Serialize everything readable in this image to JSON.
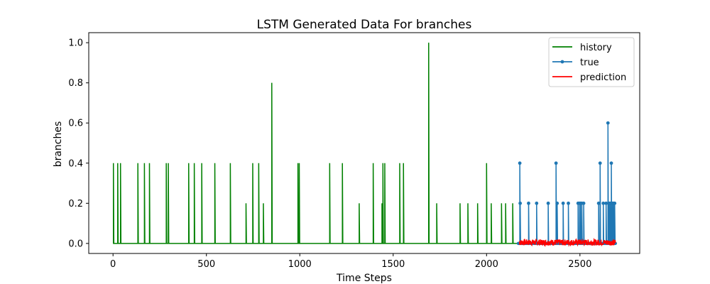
{
  "chart_data": {
    "type": "line",
    "title": "LSTM Generated Data For branches",
    "xlabel": "Time Steps",
    "ylabel": "branches",
    "xlim": [
      -130,
      2820
    ],
    "ylim": [
      -0.05,
      1.05
    ],
    "x_ticks": [
      0,
      500,
      1000,
      1500,
      2000,
      2500
    ],
    "y_ticks": [
      0.0,
      0.2,
      0.4,
      0.6,
      0.8,
      1.0
    ],
    "x_tick_labels": [
      "0",
      "500",
      "1000",
      "1500",
      "2000",
      "2500"
    ],
    "y_tick_labels": [
      "0.0",
      "0.2",
      "0.4",
      "0.6",
      "0.8",
      "1.0"
    ],
    "grid": false,
    "legend_position": "top-right",
    "series": [
      {
        "name": "history",
        "color": "#008000",
        "marker": "none",
        "x_range": [
          0,
          2175
        ],
        "baseline": 0,
        "spikes": [
          [
            2,
            0.4
          ],
          [
            25,
            0.4
          ],
          [
            40,
            0.4
          ],
          [
            133,
            0.4
          ],
          [
            168,
            0.4
          ],
          [
            195,
            0.4
          ],
          [
            285,
            0.4
          ],
          [
            296,
            0.4
          ],
          [
            405,
            0.4
          ],
          [
            435,
            0.4
          ],
          [
            475,
            0.4
          ],
          [
            545,
            0.4
          ],
          [
            628,
            0.4
          ],
          [
            712,
            0.2
          ],
          [
            748,
            0.4
          ],
          [
            780,
            0.4
          ],
          [
            805,
            0.2
          ],
          [
            850,
            0.8
          ],
          [
            990,
            0.4
          ],
          [
            997,
            0.4
          ],
          [
            1160,
            0.4
          ],
          [
            1228,
            0.4
          ],
          [
            1318,
            0.2
          ],
          [
            1393,
            0.4
          ],
          [
            1440,
            0.2
          ],
          [
            1445,
            0.4
          ],
          [
            1455,
            0.4
          ],
          [
            1535,
            0.4
          ],
          [
            1555,
            0.4
          ],
          [
            1690,
            1.0
          ],
          [
            1733,
            0.2
          ],
          [
            1858,
            0.2
          ],
          [
            1900,
            0.2
          ],
          [
            1952,
            0.2
          ],
          [
            2000,
            0.4
          ],
          [
            2025,
            0.2
          ],
          [
            2080,
            0.2
          ],
          [
            2102,
            0.2
          ],
          [
            2140,
            0.2
          ]
        ]
      },
      {
        "name": "true",
        "color": "#1f77b4",
        "marker": "circle",
        "x_range": [
          2170,
          2690
        ],
        "baseline": 0,
        "spikes": [
          [
            2178,
            0.4
          ],
          [
            2180,
            0.2
          ],
          [
            2225,
            0.2
          ],
          [
            2268,
            0.2
          ],
          [
            2330,
            0.2
          ],
          [
            2372,
            0.4
          ],
          [
            2378,
            0.2
          ],
          [
            2410,
            0.2
          ],
          [
            2438,
            0.2
          ],
          [
            2490,
            0.2
          ],
          [
            2498,
            0.2
          ],
          [
            2503,
            0.2
          ],
          [
            2510,
            0.2
          ],
          [
            2520,
            0.2
          ],
          [
            2600,
            0.2
          ],
          [
            2608,
            0.4
          ],
          [
            2625,
            0.2
          ],
          [
            2640,
            0.2
          ],
          [
            2650,
            0.6
          ],
          [
            2656,
            0.2
          ],
          [
            2662,
            0.2
          ],
          [
            2668,
            0.4
          ],
          [
            2675,
            0.2
          ],
          [
            2680,
            0.2
          ],
          [
            2686,
            0.2
          ]
        ]
      },
      {
        "name": "prediction",
        "color": "#ff0000",
        "marker": "none",
        "x_range": [
          2175,
          2690
        ],
        "approx_range": [
          -0.01,
          0.02
        ]
      }
    ]
  }
}
